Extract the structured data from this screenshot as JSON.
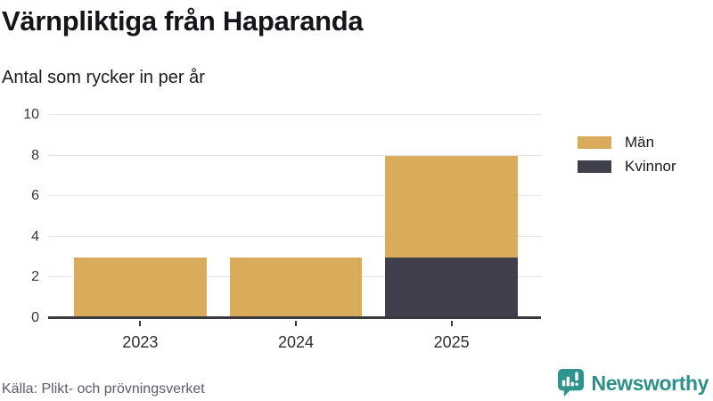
{
  "chart_data": {
    "type": "bar",
    "stacked": true,
    "title": "Värnpliktiga från Haparanda",
    "subtitle": "Antal som rycker in per år",
    "categories": [
      "2023",
      "2024",
      "2025"
    ],
    "series": [
      {
        "name": "Män",
        "color": "#d9ac5c",
        "values": [
          3,
          3,
          5
        ]
      },
      {
        "name": "Kvinnor",
        "color": "#403f4d",
        "values": [
          0,
          0,
          3
        ]
      }
    ],
    "stack_bottom_to_top": [
      "Kvinnor",
      "Män"
    ],
    "totals": [
      3,
      3,
      8
    ],
    "ylim": [
      0,
      10
    ],
    "yticks": [
      0,
      2,
      4,
      6,
      8,
      10
    ],
    "grid": true,
    "legend_position": "right"
  },
  "footer": {
    "source": "Källa: Plikt- och prövningsverket",
    "brand": "Newsworthy",
    "brand_icon": "bar-chart-speech-bubble-icon"
  },
  "colors": {
    "men": "#d9ac5c",
    "women": "#403f4d",
    "axis": "#38383e",
    "grid": "#e5e5e8",
    "brand_teal": "#2f938e",
    "source_text": "#5c5c66"
  }
}
